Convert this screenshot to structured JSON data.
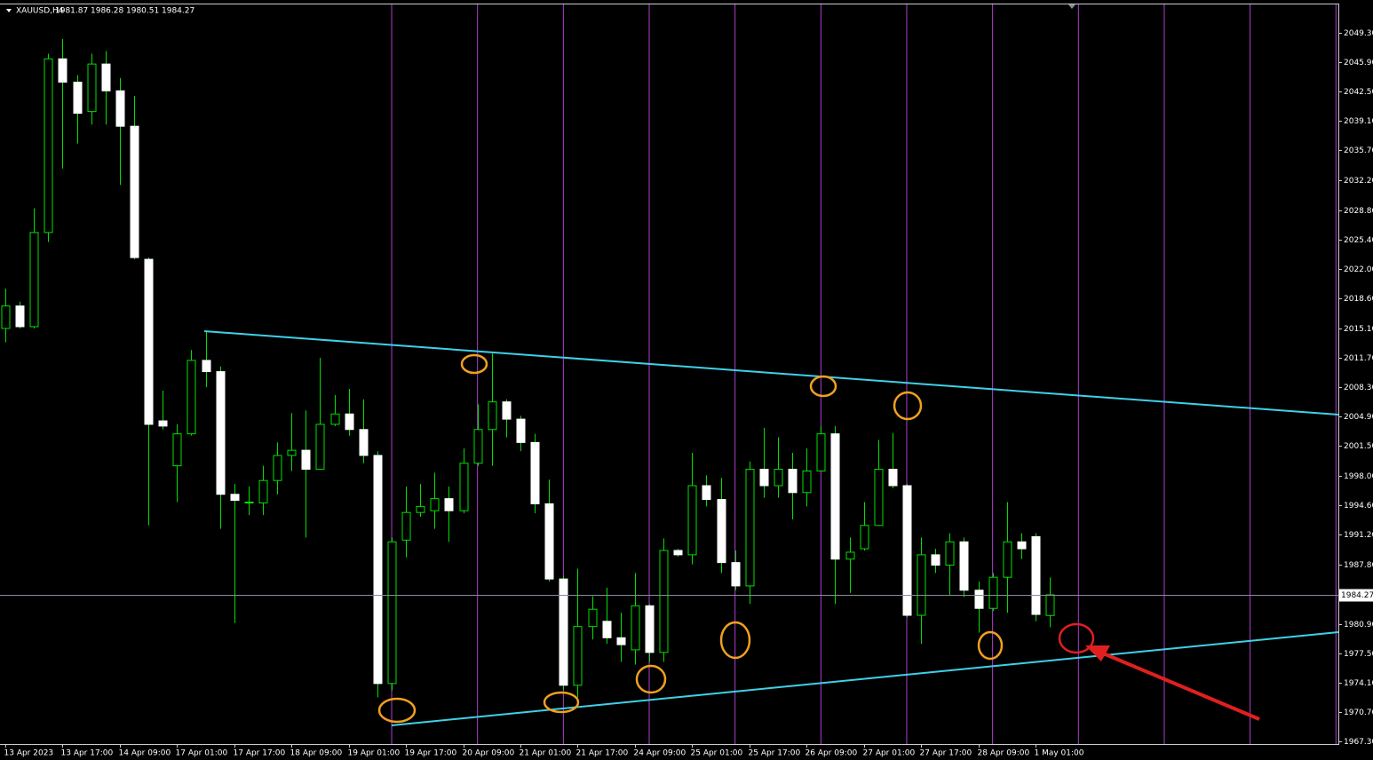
{
  "chart_data": {
    "type": "candlestick",
    "symbol": "XAUUSD,H4",
    "categories": [
      "13 Apr 2023",
      null,
      null,
      null,
      "13 Apr 17:00",
      null,
      null,
      null,
      "14 Apr 09:00",
      null,
      null,
      null,
      "17 Apr 01:00",
      null,
      null,
      null,
      "17 Apr 17:00",
      null,
      null,
      null,
      "18 Apr 09:00",
      null,
      null,
      null,
      "19 Apr 01:00",
      null,
      null,
      null,
      "19 Apr 17:00",
      null,
      null,
      null,
      "20 Apr 09:00",
      null,
      null,
      null,
      "21 Apr 01:00",
      null,
      null,
      null,
      "21 Apr 17:00",
      null,
      null,
      null,
      "24 Apr 09:00",
      null,
      null,
      null,
      "25 Apr 01:00",
      null,
      null,
      null,
      "25 Apr 17:00",
      null,
      null,
      null,
      "26 Apr 09:00",
      null,
      null,
      null,
      "27 Apr 01:00",
      null,
      null,
      null,
      "27 Apr 17:00",
      null,
      null,
      null,
      "28 Apr 09:00",
      null,
      null,
      null,
      "1 May 01:00",
      null
    ],
    "open": [
      2015.1,
      2017.7,
      2015.3,
      2026.2,
      2046.3,
      2043.6,
      2040.2,
      2045.7,
      2042.6,
      2038.5,
      2023.1,
      2004.4,
      1999.2,
      2002.9,
      2011.4,
      2010.1,
      1995.9,
      1994.9,
      1994.9,
      1997.5,
      2000.4,
      2001.0,
      1998.8,
      2004.0,
      2005.2,
      2003.4,
      2000.4,
      1974.0,
      1990.6,
      1993.8,
      1994.0,
      1995.4,
      1994.0,
      1999.5,
      2003.4,
      2006.6,
      2004.6,
      2001.9,
      1994.8,
      1986.1,
      1973.8,
      1980.6,
      1981.2,
      1979.3,
      1977.9,
      1983.0,
      1977.6,
      1989.4,
      1988.9,
      1996.9,
      1995.3,
      1988.0,
      1985.3,
      1998.8,
      1996.9,
      1998.8,
      1996.1,
      1998.6,
      2002.9,
      1988.4,
      1989.6,
      1992.3,
      1998.8,
      1996.9,
      1981.9,
      1988.9,
      1987.7,
      1990.4,
      1984.8,
      1982.7,
      1986.3,
      1990.4,
      1991.0,
      1981.87
    ],
    "high": [
      2019.7,
      2018.2,
      2029.0,
      2046.9,
      2048.6,
      2044.4,
      2046.9,
      2047.2,
      2044.1,
      2042.0,
      2023.3,
      2007.9,
      2004.0,
      2012.6,
      2014.8,
      2010.7,
      1997.1,
      1996.8,
      1999.2,
      2001.9,
      2005.3,
      2005.6,
      2011.7,
      2007.4,
      2008.1,
      2006.9,
      2000.9,
      1990.9,
      1996.8,
      1997.1,
      1998.4,
      1996.8,
      2001.2,
      2006.3,
      2012.2,
      2006.9,
      2005.0,
      2002.9,
      1997.6,
      1986.5,
      1987.3,
      1984.1,
      1985.1,
      1982.2,
      1986.8,
      1983.2,
      1990.8,
      1989.6,
      2000.7,
      1998.1,
      1997.8,
      1989.4,
      1999.7,
      2003.6,
      2002.5,
      2000.7,
      2001.2,
      2003.8,
      2003.8,
      1990.9,
      1995.0,
      2002.2,
      2003.0,
      1997.1,
      1990.9,
      1989.6,
      1991.4,
      1990.9,
      1985.8,
      1986.8,
      1995.0,
      1991.4,
      1991.4,
      1986.28
    ],
    "low": [
      2013.5,
      2015.1,
      2015.1,
      2025.1,
      2033.6,
      2036.5,
      2038.7,
      2038.7,
      2031.7,
      2023.1,
      1992.3,
      2003.4,
      1995.0,
      2002.7,
      2008.3,
      1991.9,
      1981.0,
      1993.5,
      1993.5,
      1995.9,
      1998.6,
      1990.9,
      1998.8,
      2003.8,
      2002.7,
      1999.5,
      1972.4,
      1973.2,
      1988.6,
      1993.3,
      1991.9,
      1990.4,
      1993.7,
      1999.2,
      1999.2,
      2002.5,
      2000.9,
      1993.7,
      1985.8,
      1973.2,
      1972.4,
      1979.1,
      1978.6,
      1976.5,
      1976.2,
      1976.5,
      1976.5,
      1988.7,
      1987.8,
      1994.5,
      1986.8,
      1984.8,
      1983.2,
      1995.5,
      1995.5,
      1993.0,
      1994.5,
      1998.6,
      1983.2,
      1984.5,
      1989.4,
      1992.3,
      1996.6,
      1981.7,
      1978.6,
      1986.8,
      1984.2,
      1984.0,
      1979.9,
      1982.4,
      1982.2,
      1988.4,
      1981.2,
      1980.51
    ],
    "close": [
      2017.7,
      2015.3,
      2026.2,
      2046.3,
      2043.6,
      2040.0,
      2045.7,
      2042.6,
      2038.5,
      2023.3,
      2004.0,
      2003.8,
      2002.9,
      2011.4,
      2010.1,
      1995.9,
      1995.2,
      1995.0,
      1997.5,
      2000.4,
      2001.0,
      1998.8,
      2004.0,
      2005.2,
      2003.4,
      2000.4,
      1974.0,
      1990.4,
      1993.8,
      1994.5,
      1995.4,
      1994.0,
      1999.5,
      2003.4,
      2006.6,
      2004.6,
      2001.9,
      1994.8,
      1986.1,
      1973.8,
      1980.6,
      1982.6,
      1979.3,
      1978.5,
      1983.0,
      1977.6,
      1989.4,
      1988.9,
      1996.9,
      1995.3,
      1988.0,
      1985.3,
      1998.8,
      1996.9,
      1998.8,
      1996.1,
      1998.6,
      2002.9,
      1988.4,
      1989.2,
      1992.3,
      1998.8,
      1996.9,
      1981.9,
      1988.9,
      1987.7,
      1990.4,
      1984.8,
      1982.7,
      1986.3,
      1990.4,
      1989.6,
      1982.0,
      1984.27
    ],
    "ylim": [
      1967.0,
      2052.7
    ],
    "yticks": [
      {
        "value": 2049.3,
        "label": "2049.30"
      },
      {
        "value": 2045.9,
        "label": "2045.90"
      },
      {
        "value": 2042.5,
        "label": "2042.50"
      },
      {
        "value": 2039.1,
        "label": "2039.10"
      },
      {
        "value": 2035.7,
        "label": "2035.70"
      },
      {
        "value": 2032.2,
        "label": "2032.20"
      },
      {
        "value": 2028.8,
        "label": "2028.80"
      },
      {
        "value": 2025.4,
        "label": "2025.40"
      },
      {
        "value": 2022,
        "label": "2022.00"
      },
      {
        "value": 2018.6,
        "label": "2018.60"
      },
      {
        "value": 2015.1,
        "label": "2015.10"
      },
      {
        "value": 2011.7,
        "label": "2011.70"
      },
      {
        "value": 2008.3,
        "label": "2008.30"
      },
      {
        "value": 2004.9,
        "label": "2004.90"
      },
      {
        "value": 2001.5,
        "label": "2001.50"
      },
      {
        "value": 1998,
        "label": "1998.00"
      },
      {
        "value": 1994.6,
        "label": "1994.60"
      },
      {
        "value": 1991.2,
        "label": "1991.20"
      },
      {
        "value": 1987.8,
        "label": "1987.80"
      },
      {
        "value": 1980.9,
        "label": "1980.90"
      },
      {
        "value": 1977.5,
        "label": "1977.50"
      },
      {
        "value": 1974.1,
        "label": "1974.10"
      },
      {
        "value": 1970.7,
        "label": "1970.70"
      },
      {
        "value": 1967.3,
        "label": "1967.30"
      }
    ],
    "bull_color": "#000000",
    "bear_color": "#ffffff",
    "line_color": "#00e000",
    "grid": false
  }
}
